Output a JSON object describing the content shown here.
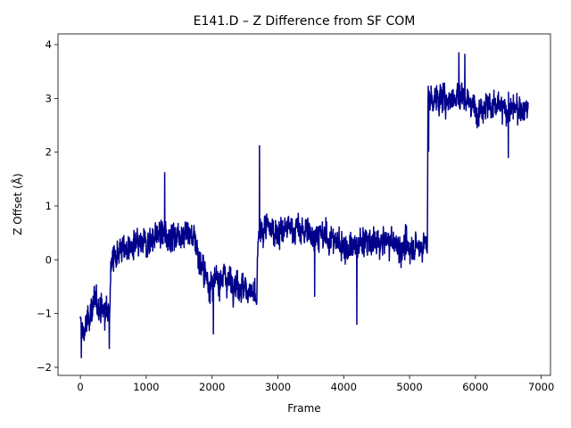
{
  "chart_data": {
    "type": "line",
    "title": "E141.D – Z Difference from SF COM",
    "xlabel": "Frame",
    "ylabel": "Z Offset (Å)",
    "xlim": [
      -340,
      7140
    ],
    "ylim": [
      -2.15,
      4.2
    ],
    "xticks": [
      0,
      1000,
      2000,
      3000,
      4000,
      5000,
      6000,
      7000
    ],
    "yticks": [
      -2,
      -1,
      0,
      1,
      2,
      3,
      4
    ],
    "grid": false,
    "legend": "none",
    "series": [
      {
        "color": "#00008b",
        "x_range": [
          0,
          6800
        ],
        "segments": [
          {
            "x": 0,
            "y": -1.2
          },
          {
            "x": 50,
            "y": -1.4
          },
          {
            "x": 120,
            "y": -1.1
          },
          {
            "x": 200,
            "y": -0.8
          },
          {
            "x": 300,
            "y": -0.85
          },
          {
            "x": 380,
            "y": -1.0
          },
          {
            "x": 440,
            "y": -0.9
          },
          {
            "x": 470,
            "y": 0.0
          },
          {
            "x": 600,
            "y": 0.2
          },
          {
            "x": 800,
            "y": 0.2
          },
          {
            "x": 1000,
            "y": 0.3
          },
          {
            "x": 1200,
            "y": 0.5
          },
          {
            "x": 1400,
            "y": 0.45
          },
          {
            "x": 1600,
            "y": 0.5
          },
          {
            "x": 1750,
            "y": 0.4
          },
          {
            "x": 1800,
            "y": 0.0
          },
          {
            "x": 1900,
            "y": -0.3
          },
          {
            "x": 2000,
            "y": -0.5
          },
          {
            "x": 2150,
            "y": -0.3
          },
          {
            "x": 2300,
            "y": -0.4
          },
          {
            "x": 2450,
            "y": -0.5
          },
          {
            "x": 2600,
            "y": -0.6
          },
          {
            "x": 2680,
            "y": -0.8
          },
          {
            "x": 2700,
            "y": 0.4
          },
          {
            "x": 2800,
            "y": 0.6
          },
          {
            "x": 3000,
            "y": 0.5
          },
          {
            "x": 3200,
            "y": 0.6
          },
          {
            "x": 3500,
            "y": 0.5
          },
          {
            "x": 3800,
            "y": 0.4
          },
          {
            "x": 4100,
            "y": 0.2
          },
          {
            "x": 4300,
            "y": 0.35
          },
          {
            "x": 4500,
            "y": 0.3
          },
          {
            "x": 4700,
            "y": 0.35
          },
          {
            "x": 4900,
            "y": 0.2
          },
          {
            "x": 5100,
            "y": 0.25
          },
          {
            "x": 5270,
            "y": 0.3
          },
          {
            "x": 5280,
            "y": 3.0
          },
          {
            "x": 5400,
            "y": 3.0
          },
          {
            "x": 5600,
            "y": 3.0
          },
          {
            "x": 5800,
            "y": 3.1
          },
          {
            "x": 6000,
            "y": 2.8
          },
          {
            "x": 6200,
            "y": 2.9
          },
          {
            "x": 6400,
            "y": 2.8
          },
          {
            "x": 6600,
            "y": 2.8
          },
          {
            "x": 6800,
            "y": 2.8
          }
        ],
        "noise": 0.35,
        "spikes": [
          {
            "x": 15,
            "y": -1.82
          },
          {
            "x": 440,
            "y": -1.65
          },
          {
            "x": 1280,
            "y": 1.62
          },
          {
            "x": 2020,
            "y": -1.38
          },
          {
            "x": 2720,
            "y": 2.12
          },
          {
            "x": 3560,
            "y": -0.68
          },
          {
            "x": 4200,
            "y": -1.2
          },
          {
            "x": 5290,
            "y": 2.02
          },
          {
            "x": 5750,
            "y": 3.85
          },
          {
            "x": 5840,
            "y": 3.82
          },
          {
            "x": 6500,
            "y": 1.9
          }
        ]
      }
    ]
  }
}
